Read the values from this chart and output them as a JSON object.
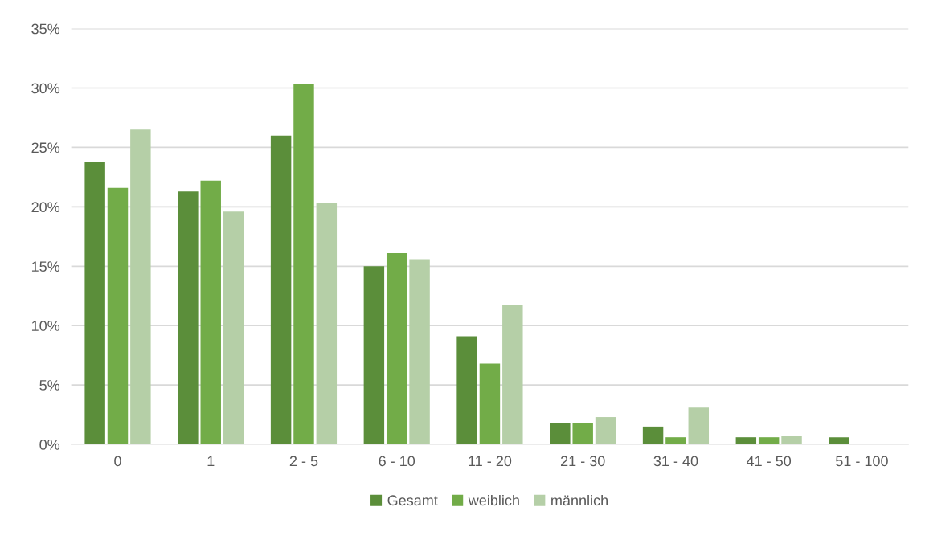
{
  "chart_data": {
    "type": "bar",
    "categories": [
      "0",
      "1",
      "2 - 5",
      "6 - 10",
      "11 - 20",
      "21 - 30",
      "31 - 40",
      "41 - 50",
      "51 - 100"
    ],
    "series": [
      {
        "name": "Gesamt",
        "color": "#5b8e3a",
        "values": [
          23.8,
          21.3,
          26.0,
          15.0,
          9.1,
          1.8,
          1.5,
          0.6,
          0.6
        ]
      },
      {
        "name": "weiblich",
        "color": "#72ac48",
        "values": [
          21.6,
          22.2,
          30.3,
          16.1,
          6.8,
          1.8,
          0.6,
          0.6,
          0
        ]
      },
      {
        "name": "männlich",
        "color": "#b5cfa7",
        "values": [
          26.5,
          19.6,
          20.3,
          15.6,
          11.7,
          2.3,
          3.1,
          0.7,
          0
        ]
      }
    ],
    "ylim": [
      0,
      35
    ],
    "yticks": [
      {
        "value": 0,
        "label": "0%"
      },
      {
        "value": 5,
        "label": "5%"
      },
      {
        "value": 10,
        "label": "10%"
      },
      {
        "value": 15,
        "label": "15%"
      },
      {
        "value": 20,
        "label": "20%"
      },
      {
        "value": 25,
        "label": "25%"
      },
      {
        "value": 30,
        "label": "30%"
      },
      {
        "value": 35,
        "label": "35%"
      }
    ],
    "grid": "y",
    "legend": "bottom"
  }
}
